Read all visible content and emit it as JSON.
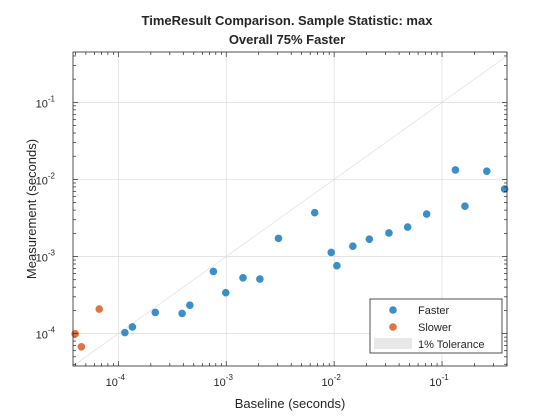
{
  "chart_data": {
    "type": "scatter",
    "title": [
      "TimeResult Comparison. Sample Statistic: max",
      "Overall 75% Faster"
    ],
    "xlabel": "Baseline (seconds)",
    "ylabel": "Measurement (seconds)",
    "xscale": "log",
    "yscale": "log",
    "xlim": [
      3.8e-05,
      0.4
    ],
    "ylim": [
      3.8e-05,
      0.45
    ],
    "grid": true,
    "legend_position": "bottom-right",
    "x_ticks": [
      {
        "value": 0.0001,
        "base": "10",
        "exp": "-4"
      },
      {
        "value": 0.001,
        "base": "10",
        "exp": "-3"
      },
      {
        "value": 0.01,
        "base": "10",
        "exp": "-2"
      },
      {
        "value": 0.1,
        "base": "10",
        "exp": "-1"
      }
    ],
    "y_ticks": [
      {
        "value": 0.0001,
        "base": "10",
        "exp": "-4"
      },
      {
        "value": 0.001,
        "base": "10",
        "exp": "-3"
      },
      {
        "value": 0.01,
        "base": "10",
        "exp": "-2"
      },
      {
        "value": 0.1,
        "base": "10",
        "exp": "-1"
      }
    ],
    "colors": {
      "faster": "#3a8fca",
      "slower": "#e07443",
      "tolerance": "#e8e8e8"
    },
    "series": [
      {
        "name": "Faster",
        "points": [
          [
            0.000115,
            0.000103
          ],
          [
            0.000135,
            0.000122
          ],
          [
            0.00022,
            0.000188
          ],
          [
            0.00039,
            0.000183
          ],
          [
            0.00046,
            0.000234
          ],
          [
            0.00076,
            0.00064
          ],
          [
            0.00099,
            0.00034
          ],
          [
            0.00143,
            0.00053
          ],
          [
            0.00205,
            0.00051
          ],
          [
            0.00305,
            0.00172
          ],
          [
            0.0066,
            0.0037
          ],
          [
            0.0094,
            0.00113
          ],
          [
            0.0106,
            0.00076
          ],
          [
            0.0149,
            0.00136
          ],
          [
            0.0212,
            0.00168
          ],
          [
            0.0322,
            0.00202
          ],
          [
            0.048,
            0.00241
          ],
          [
            0.072,
            0.00356
          ],
          [
            0.133,
            0.0133
          ],
          [
            0.163,
            0.0045
          ],
          [
            0.26,
            0.0128
          ],
          [
            0.38,
            0.0075
          ]
        ]
      },
      {
        "name": "Slower",
        "points": [
          [
            3.98e-05,
            9.93e-05
          ],
          [
            4.55e-05,
            6.75e-05
          ],
          [
            6.65e-05,
            0.000208
          ]
        ]
      }
    ],
    "tolerance_name": "1% Tolerance"
  }
}
